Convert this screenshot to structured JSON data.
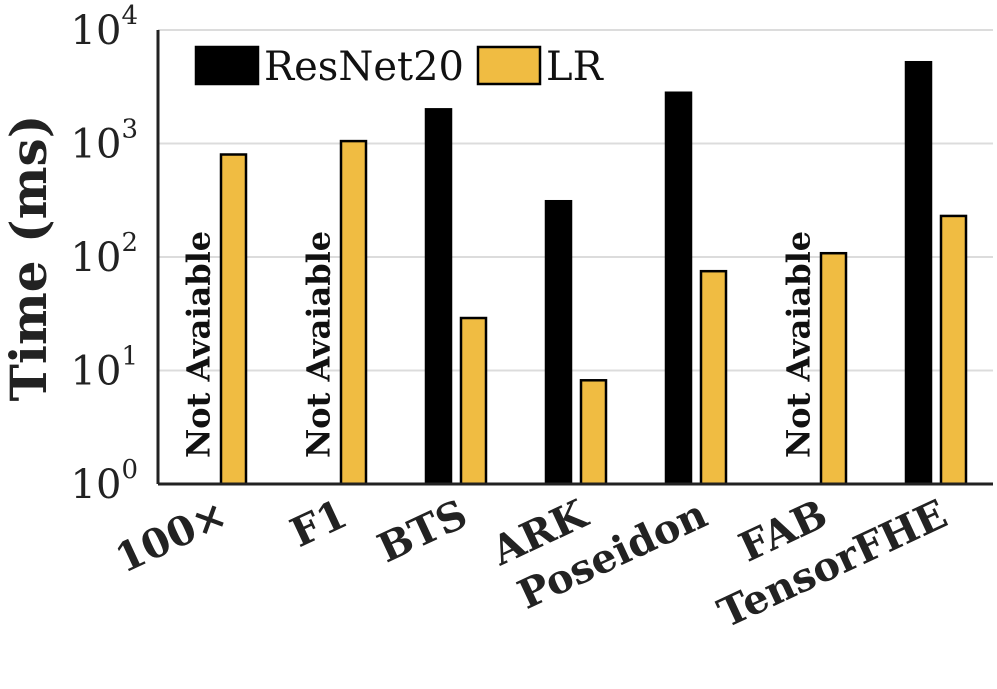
{
  "chart_data": {
    "type": "bar",
    "title": "",
    "xlabel": "",
    "ylabel": "Time (ms)",
    "yscale": "log",
    "ylim": [
      1,
      10000
    ],
    "yticks": [
      {
        "value": 1,
        "base": "10",
        "exp": "0"
      },
      {
        "value": 10,
        "base": "10",
        "exp": "1"
      },
      {
        "value": 100,
        "base": "10",
        "exp": "2"
      },
      {
        "value": 1000,
        "base": "10",
        "exp": "3"
      },
      {
        "value": 10000,
        "base": "10",
        "exp": "4"
      }
    ],
    "grid": true,
    "legend_position": "top-left",
    "categories": [
      "100×",
      "F1",
      "BTS",
      "ARK",
      "Poseidon",
      "FAB",
      "TensorFHE"
    ],
    "series": [
      {
        "name": "ResNet20",
        "color": "#000000",
        "values": [
          null,
          null,
          2000,
          310,
          2800,
          null,
          5200
        ]
      },
      {
        "name": "LR",
        "color": "#F0BC42",
        "values": [
          800,
          1050,
          29,
          8.2,
          75,
          108,
          230
        ]
      }
    ],
    "missing_label": "Not Avaiable"
  }
}
